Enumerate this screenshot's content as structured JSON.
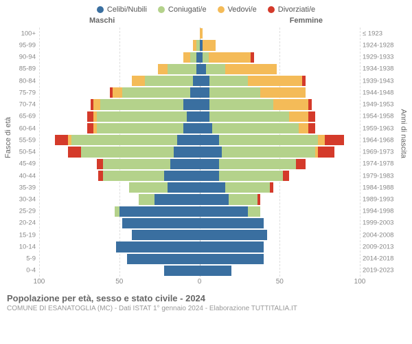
{
  "legend": [
    {
      "label": "Celibi/Nubili",
      "color": "#3a6fa0"
    },
    {
      "label": "Coniugati/e",
      "color": "#b4d28b"
    },
    {
      "label": "Vedovi/e",
      "color": "#f4bb58"
    },
    {
      "label": "Divorziati/e",
      "color": "#d43a2a"
    }
  ],
  "headers": {
    "male": "Maschi",
    "female": "Femmine"
  },
  "axis": {
    "left_title": "Fasce di età",
    "right_title": "Anni di nascita",
    "xmax": 100,
    "xticks": [
      100,
      50,
      0,
      50,
      100
    ]
  },
  "footer": {
    "title": "Popolazione per età, sesso e stato civile - 2024",
    "subtitle": "COMUNE DI ESANATOGLIA (MC) - Dati ISTAT 1° gennaio 2024 - Elaborazione TUTTITALIA.IT"
  },
  "colors": {
    "celibi": "#3a6fa0",
    "coniugati": "#b4d28b",
    "vedovi": "#f4bb58",
    "divorziati": "#d43a2a",
    "grid": "#dddddd",
    "center": "#bbbbbb",
    "text": "#888888"
  },
  "rows": [
    {
      "age": "0-4",
      "birth": "2019-2023",
      "m": [
        22,
        0,
        0,
        0
      ],
      "f": [
        20,
        0,
        0,
        0
      ]
    },
    {
      "age": "5-9",
      "birth": "2014-2018",
      "m": [
        45,
        0,
        0,
        0
      ],
      "f": [
        40,
        0,
        0,
        0
      ]
    },
    {
      "age": "10-14",
      "birth": "2009-2013",
      "m": [
        52,
        0,
        0,
        0
      ],
      "f": [
        40,
        0,
        0,
        0
      ]
    },
    {
      "age": "15-19",
      "birth": "2004-2008",
      "m": [
        42,
        0,
        0,
        0
      ],
      "f": [
        42,
        0,
        0,
        0
      ]
    },
    {
      "age": "20-24",
      "birth": "1999-2003",
      "m": [
        48,
        0,
        0,
        0
      ],
      "f": [
        40,
        0,
        0,
        0
      ]
    },
    {
      "age": "25-29",
      "birth": "1994-1998",
      "m": [
        50,
        3,
        0,
        0
      ],
      "f": [
        30,
        8,
        0,
        0
      ]
    },
    {
      "age": "30-34",
      "birth": "1989-1993",
      "m": [
        28,
        10,
        0,
        0
      ],
      "f": [
        18,
        18,
        0,
        2
      ]
    },
    {
      "age": "35-39",
      "birth": "1984-1988",
      "m": [
        20,
        24,
        0,
        0
      ],
      "f": [
        16,
        28,
        0,
        2
      ]
    },
    {
      "age": "40-44",
      "birth": "1979-1983",
      "m": [
        22,
        38,
        0,
        3
      ],
      "f": [
        12,
        40,
        0,
        4
      ]
    },
    {
      "age": "45-49",
      "birth": "1974-1978",
      "m": [
        18,
        42,
        0,
        4
      ],
      "f": [
        12,
        48,
        0,
        6
      ]
    },
    {
      "age": "50-54",
      "birth": "1969-1973",
      "m": [
        16,
        58,
        0,
        8
      ],
      "f": [
        14,
        58,
        2,
        10
      ]
    },
    {
      "age": "55-59",
      "birth": "1964-1968",
      "m": [
        14,
        66,
        2,
        8
      ],
      "f": [
        12,
        62,
        4,
        12
      ]
    },
    {
      "age": "60-64",
      "birth": "1959-1963",
      "m": [
        10,
        54,
        2,
        4
      ],
      "f": [
        8,
        54,
        6,
        4
      ]
    },
    {
      "age": "65-69",
      "birth": "1954-1958",
      "m": [
        8,
        56,
        2,
        4
      ],
      "f": [
        6,
        50,
        12,
        4
      ]
    },
    {
      "age": "70-74",
      "birth": "1949-1953",
      "m": [
        10,
        52,
        4,
        2
      ],
      "f": [
        6,
        40,
        22,
        2
      ]
    },
    {
      "age": "75-79",
      "birth": "1944-1948",
      "m": [
        6,
        42,
        6,
        2
      ],
      "f": [
        6,
        32,
        28,
        0
      ]
    },
    {
      "age": "80-84",
      "birth": "1939-1943",
      "m": [
        4,
        30,
        8,
        0
      ],
      "f": [
        6,
        24,
        34,
        2
      ]
    },
    {
      "age": "85-89",
      "birth": "1934-1938",
      "m": [
        2,
        18,
        6,
        0
      ],
      "f": [
        4,
        12,
        32,
        0
      ]
    },
    {
      "age": "90-94",
      "birth": "1929-1933",
      "m": [
        2,
        4,
        4,
        0
      ],
      "f": [
        2,
        4,
        26,
        2
      ]
    },
    {
      "age": "95-99",
      "birth": "1924-1928",
      "m": [
        0,
        2,
        2,
        0
      ],
      "f": [
        2,
        0,
        8,
        0
      ]
    },
    {
      "age": "100+",
      "birth": "≤ 1923",
      "m": [
        0,
        0,
        0,
        0
      ],
      "f": [
        0,
        0,
        2,
        0
      ]
    }
  ]
}
